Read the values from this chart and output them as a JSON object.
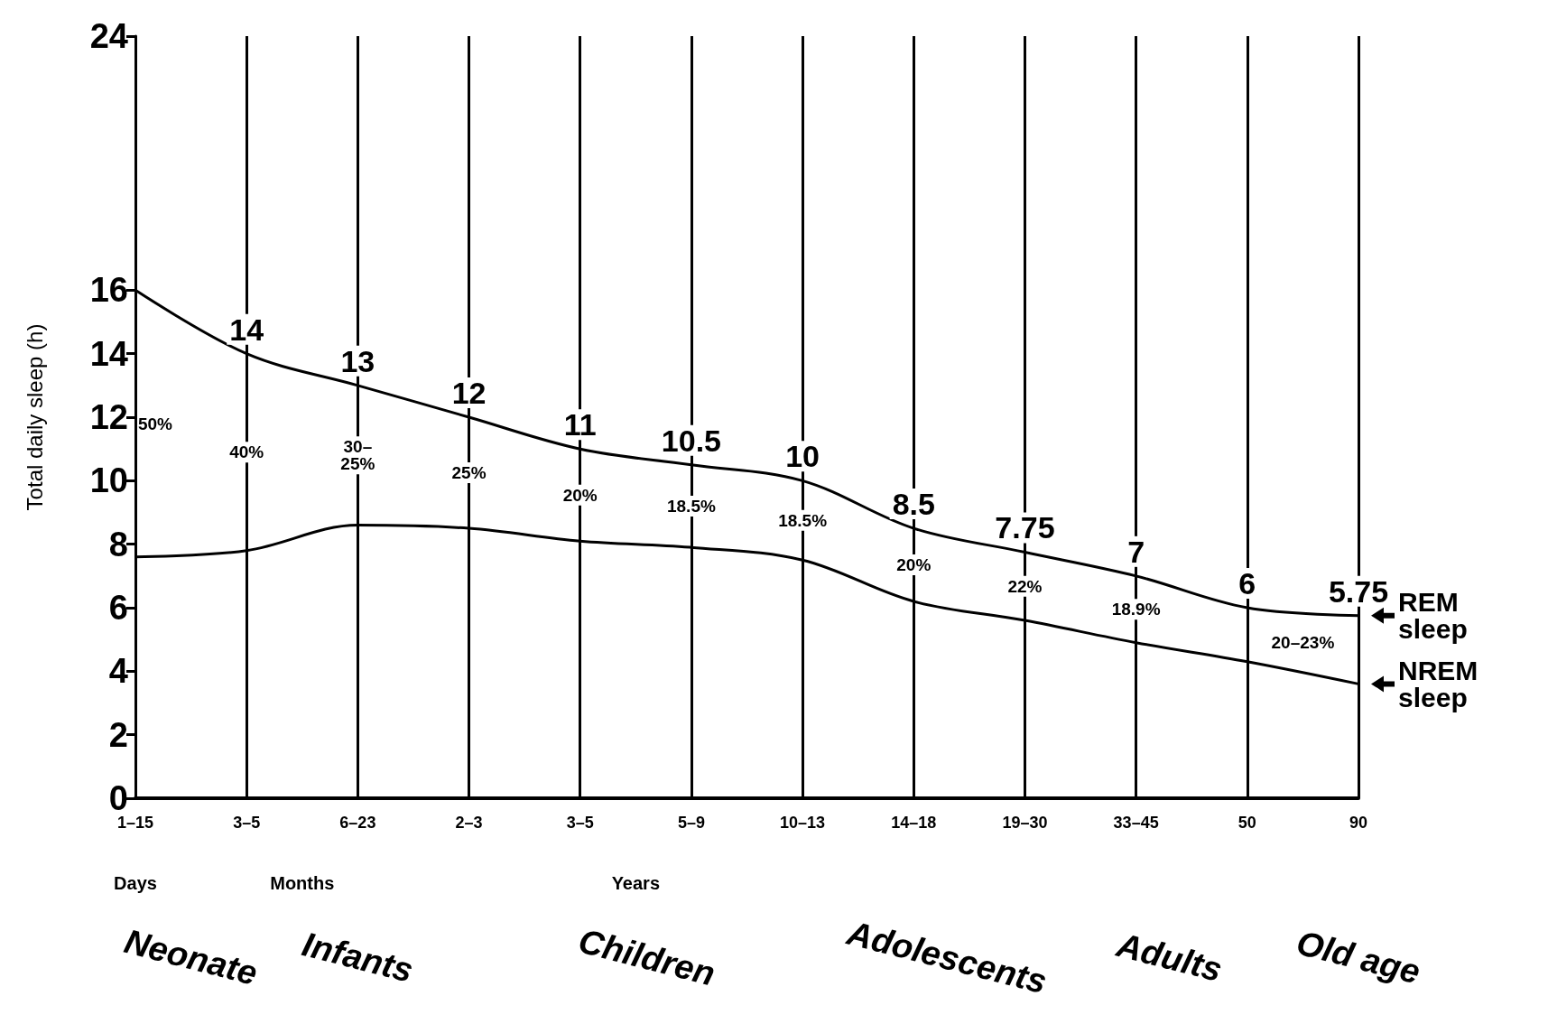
{
  "chart_data": {
    "type": "line",
    "ylabel": "Total daily sleep (h)",
    "categories": [
      "1–15",
      "3–5",
      "6–23",
      "2–3",
      "3–5",
      "5–9",
      "10–13",
      "14–18",
      "19–30",
      "33–45",
      "50",
      "90"
    ],
    "series": [
      {
        "name": "REM sleep",
        "color": "#000000",
        "values": [
          16,
          14,
          13,
          12,
          11,
          10.5,
          10,
          8.5,
          7.75,
          7,
          6,
          5.75
        ],
        "value_labels": [
          null,
          "14",
          "13",
          "12",
          "11",
          "10.5",
          "10",
          "8.5",
          "7.75",
          "7",
          "6",
          "5.75"
        ]
      },
      {
        "name": "NREM sleep",
        "color": "#000000",
        "values": [
          7.6,
          7.8,
          8.6,
          8.5,
          8.1,
          7.9,
          7.5,
          6.2,
          5.6,
          4.9,
          4.3,
          3.6
        ]
      }
    ],
    "ylim": [
      0,
      24
    ],
    "yticks": [
      0,
      2,
      4,
      6,
      8,
      10,
      12,
      14,
      16,
      24
    ],
    "grid": "x",
    "legend": "right",
    "marker": "none",
    "line_style": "solid",
    "annotations": [
      "50%",
      "40%",
      "30–\n25%",
      "25%",
      "20%",
      "18.5%",
      "18.5%",
      "20%",
      "22%",
      "18.9%",
      "20–23%",
      "Days",
      "Months",
      "Years",
      "Neonate",
      "Infants",
      "Children",
      "Adolescents",
      "Adults",
      "Old age"
    ]
  }
}
